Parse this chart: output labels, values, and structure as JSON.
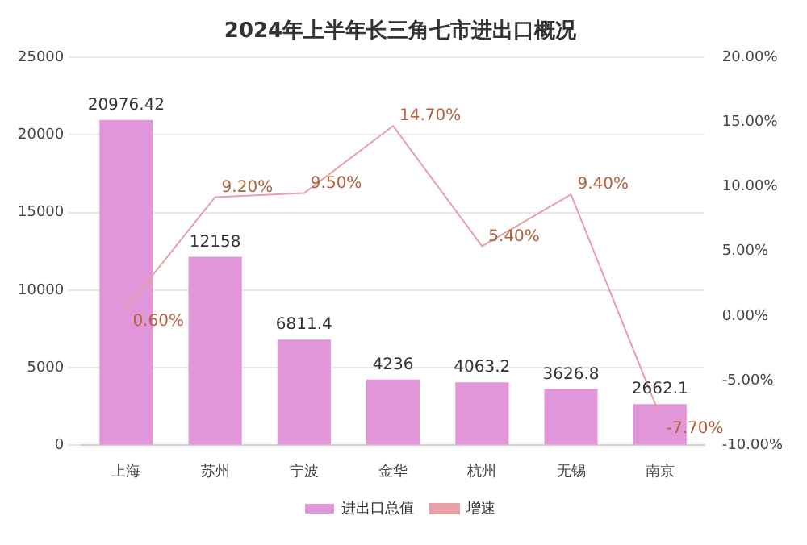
{
  "chart_data": {
    "type": "bar",
    "title": "2024年上半年长三角七市进出口概况",
    "categories": [
      "上海",
      "苏州",
      "宁波",
      "金华",
      "杭州",
      "无锡",
      "南京"
    ],
    "series": [
      {
        "name": "进出口总值",
        "color": "#e096d8",
        "values": [
          20976.42,
          12158,
          6811.4,
          4236,
          4063.2,
          3626.8,
          2662.1
        ],
        "value_labels": [
          "20976.42",
          "12158",
          "6811.4",
          "4236",
          "4063.2",
          "3626.8",
          "2662.1"
        ]
      },
      {
        "name": "增速",
        "type": "line",
        "axis": "y2",
        "color": "#e8a0a8",
        "marker": "none",
        "values": [
          0.6,
          9.2,
          9.5,
          14.7,
          5.4,
          9.4,
          -7.7
        ],
        "value_labels": [
          "0.60%",
          "9.20%",
          "9.50%",
          "14.70%",
          "5.40%",
          "9.40%",
          "-7.70%"
        ]
      }
    ],
    "ylim": [
      0,
      25000
    ],
    "yticks": [
      0,
      5000,
      10000,
      15000,
      20000,
      25000
    ],
    "y2lim": [
      -10,
      20
    ],
    "y2ticks": [
      {
        "value": -10,
        "label": "-10.00%"
      },
      {
        "value": -5,
        "label": "-5.00%"
      },
      {
        "value": 0,
        "label": "0.00%"
      },
      {
        "value": 5,
        "label": "5.00%"
      },
      {
        "value": 10,
        "label": "10.00%"
      },
      {
        "value": 15,
        "label": "15.00%"
      },
      {
        "value": 20,
        "label": "20.00%"
      }
    ],
    "grid": "y",
    "legend": "bottom"
  }
}
